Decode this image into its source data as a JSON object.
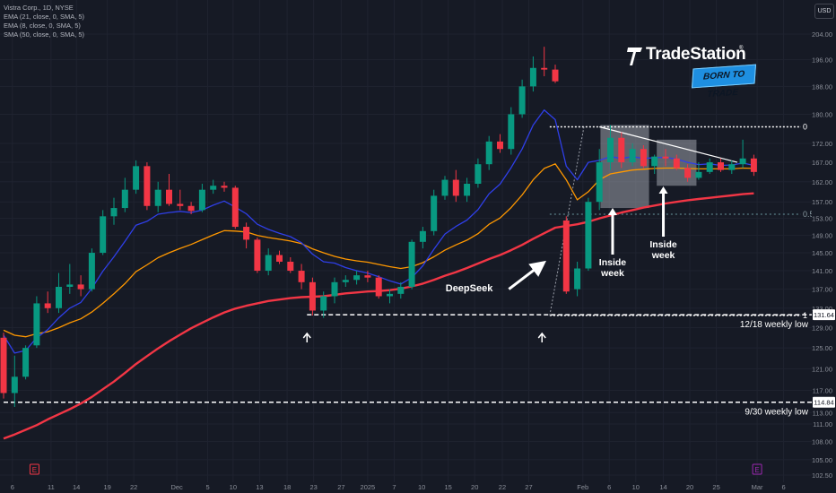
{
  "symbol_line": "Vistra Corp., 1D, NYSE",
  "indicators": [
    {
      "label": "EMA (21, close, 0, SMA, 5)",
      "color": "#ff9800"
    },
    {
      "label": "EMA (8, close, 0, SMA, 5)",
      "color": "#2f3fe8"
    },
    {
      "label": "SMA (50, close, 0, SMA, 5)",
      "color": "#f23645"
    }
  ],
  "currency_button": "USD",
  "brand": {
    "name": "TradeStation",
    "reg": "®",
    "tagline": "BORN TO TRADE",
    "accent": "#1e8fe1"
  },
  "chart_data": {
    "type": "candlestick",
    "colors": {
      "up": "#089981",
      "down": "#f23645",
      "ema21": "#ff9800",
      "ema8": "#2f3fe8",
      "sma50": "#f23645",
      "background": "#161a25"
    },
    "y_ticks": [
      204.0,
      196.0,
      188.0,
      180.0,
      172.0,
      167.0,
      162.0,
      157.0,
      153.0,
      149.0,
      145.0,
      141.0,
      137.0,
      133.0,
      129.0,
      125.0,
      121.0,
      117.0,
      113.0,
      111.0,
      108.0,
      105.0,
      102.5
    ],
    "x_ticks": [
      {
        "label": "6",
        "xi": 0.8
      },
      {
        "label": "11",
        "xi": 4.3
      },
      {
        "label": "14",
        "xi": 6.6
      },
      {
        "label": "19",
        "xi": 9.4
      },
      {
        "label": "22",
        "xi": 11.8
      },
      {
        "label": "Dec",
        "xi": 15.7
      },
      {
        "label": "5",
        "xi": 18.5
      },
      {
        "label": "10",
        "xi": 20.8
      },
      {
        "label": "13",
        "xi": 23.2
      },
      {
        "label": "18",
        "xi": 25.7
      },
      {
        "label": "23",
        "xi": 28.1
      },
      {
        "label": "27",
        "xi": 30.6
      },
      {
        "label": "2025",
        "xi": 33.0
      },
      {
        "label": "7",
        "xi": 35.4
      },
      {
        "label": "10",
        "xi": 37.9
      },
      {
        "label": "15",
        "xi": 40.3
      },
      {
        "label": "20",
        "xi": 42.7
      },
      {
        "label": "22",
        "xi": 45.2
      },
      {
        "label": "27",
        "xi": 47.6
      },
      {
        "label": "Feb",
        "xi": 52.5
      },
      {
        "label": "6",
        "xi": 54.9
      },
      {
        "label": "10",
        "xi": 57.3
      },
      {
        "label": "14",
        "xi": 59.8
      },
      {
        "label": "20",
        "xi": 62.2
      },
      {
        "label": "25",
        "xi": 64.6
      },
      {
        "label": "Mar",
        "xi": 68.3
      },
      {
        "label": "6",
        "xi": 70.7
      }
    ],
    "candles": [
      [
        127.0,
        128.0,
        115.5,
        116.5
      ],
      [
        116.5,
        123.5,
        114.0,
        119.5
      ],
      [
        119.5,
        125.5,
        119.0,
        125.0
      ],
      [
        125.5,
        135.5,
        125.0,
        134.0
      ],
      [
        134.0,
        136.5,
        132.0,
        133.0
      ],
      [
        133.0,
        140.5,
        132.0,
        137.5
      ],
      [
        137.5,
        142.5,
        136.0,
        138.0
      ],
      [
        138.0,
        140.0,
        135.5,
        137.0
      ],
      [
        137.0,
        146.0,
        136.5,
        145.0
      ],
      [
        145.0,
        155.0,
        144.5,
        153.5
      ],
      [
        153.5,
        158.0,
        151.5,
        155.5
      ],
      [
        155.5,
        163.0,
        154.5,
        160.0
      ],
      [
        160.0,
        167.5,
        159.0,
        166.0
      ],
      [
        166.0,
        167.0,
        155.0,
        156.0
      ],
      [
        156.0,
        162.0,
        154.5,
        160.0
      ],
      [
        160.0,
        164.0,
        156.0,
        156.5
      ],
      [
        156.5,
        160.0,
        155.0,
        156.0
      ],
      [
        156.0,
        157.0,
        154.0,
        154.8
      ],
      [
        155.0,
        161.5,
        154.5,
        160.0
      ],
      [
        160.0,
        162.5,
        159.0,
        161.0
      ],
      [
        161.0,
        162.0,
        159.5,
        160.5
      ],
      [
        160.5,
        161.0,
        150.5,
        151.0
      ],
      [
        151.0,
        152.0,
        146.0,
        148.0
      ],
      [
        148.0,
        148.5,
        140.5,
        141.0
      ],
      [
        141.0,
        146.0,
        140.0,
        144.5
      ],
      [
        144.5,
        145.5,
        142.5,
        143.0
      ],
      [
        143.0,
        144.0,
        140.5,
        141.0
      ],
      [
        141.0,
        142.5,
        137.0,
        138.5
      ],
      [
        138.5,
        139.5,
        131.5,
        132.5
      ],
      [
        132.5,
        136.5,
        131.0,
        135.5
      ],
      [
        135.5,
        139.5,
        134.0,
        138.5
      ],
      [
        138.5,
        140.0,
        137.5,
        139.0
      ],
      [
        139.0,
        141.0,
        138.0,
        140.0
      ],
      [
        140.0,
        141.0,
        138.5,
        139.5
      ],
      [
        139.5,
        140.0,
        135.0,
        135.5
      ],
      [
        135.5,
        137.0,
        134.0,
        136.0
      ],
      [
        136.0,
        138.5,
        135.0,
        137.5
      ],
      [
        137.5,
        148.0,
        137.0,
        147.5
      ],
      [
        147.5,
        151.0,
        146.0,
        150.0
      ],
      [
        150.0,
        160.0,
        149.0,
        158.5
      ],
      [
        158.5,
        163.5,
        157.5,
        162.5
      ],
      [
        162.5,
        165.0,
        157.0,
        158.5
      ],
      [
        158.5,
        163.0,
        157.0,
        161.5
      ],
      [
        161.5,
        168.0,
        160.5,
        166.5
      ],
      [
        166.5,
        174.0,
        165.0,
        172.5
      ],
      [
        172.5,
        174.5,
        169.5,
        170.5
      ],
      [
        170.5,
        182.0,
        169.0,
        180.0
      ],
      [
        180.0,
        190.0,
        179.0,
        188.0
      ],
      [
        188.0,
        197.0,
        186.5,
        193.5
      ],
      [
        193.5,
        200.0,
        191.0,
        193.0
      ],
      [
        193.0,
        194.5,
        189.0,
        189.5
      ],
      [
        152.5,
        153.5,
        136.0,
        136.5
      ],
      [
        137.0,
        143.0,
        135.5,
        141.5
      ],
      [
        141.5,
        158.0,
        141.0,
        157.0
      ],
      [
        157.0,
        170.5,
        155.0,
        167.0
      ],
      [
        167.0,
        177.0,
        165.0,
        173.5
      ],
      [
        173.5,
        175.0,
        165.5,
        167.0
      ],
      [
        167.0,
        172.0,
        166.0,
        170.5
      ],
      [
        170.5,
        171.5,
        165.5,
        166.0
      ],
      [
        166.0,
        169.0,
        164.0,
        168.5
      ],
      [
        168.5,
        170.5,
        166.0,
        168.0
      ],
      [
        168.0,
        169.0,
        165.0,
        165.5
      ],
      [
        165.5,
        166.5,
        162.0,
        163.0
      ],
      [
        163.0,
        167.0,
        162.5,
        164.5
      ],
      [
        164.5,
        168.0,
        164.0,
        167.0
      ],
      [
        167.0,
        168.0,
        164.5,
        165.0
      ],
      [
        165.0,
        167.5,
        164.0,
        166.5
      ],
      [
        166.5,
        173.0,
        165.5,
        168.0
      ],
      [
        168.0,
        169.0,
        163.5,
        164.5
      ]
    ],
    "ema8": [
      127.5,
      124.0,
      124.5,
      127.0,
      128.6,
      131.0,
      133.0,
      134.2,
      137.2,
      140.9,
      144.1,
      147.6,
      151.4,
      152.3,
      154.0,
      154.4,
      154.7,
      154.4,
      155.0,
      156.2,
      157.2,
      155.7,
      154.1,
      151.6,
      150.4,
      149.5,
      148.7,
      147.3,
      144.7,
      143.0,
      142.7,
      141.7,
      141.0,
      140.5,
      139.7,
      138.8,
      138.1,
      139.5,
      142.1,
      145.8,
      149.3,
      151.1,
      152.6,
      155.1,
      159.0,
      161.4,
      165.6,
      170.5,
      177.0,
      181.2,
      178.5,
      166.0,
      162.5,
      167.0,
      167.5,
      168.5,
      168.0,
      168.5,
      168.0,
      168.2,
      168.3,
      167.8,
      167.0,
      166.4,
      166.6,
      166.2,
      166.3,
      166.8,
      166.2
    ],
    "ema21": [
      128.5,
      127.5,
      127.2,
      127.8,
      128.2,
      129.0,
      130.0,
      130.8,
      132.2,
      134.0,
      136.0,
      138.2,
      140.8,
      142.3,
      143.9,
      145.0,
      146.0,
      146.9,
      148.0,
      149.1,
      150.1,
      150.0,
      149.8,
      149.0,
      148.5,
      148.1,
      147.7,
      147.1,
      145.9,
      145.0,
      144.2,
      143.6,
      143.2,
      142.9,
      142.4,
      141.9,
      141.5,
      141.9,
      142.8,
      144.1,
      145.6,
      146.8,
      147.9,
      149.4,
      151.6,
      153.1,
      155.6,
      158.7,
      162.5,
      165.4,
      166.6,
      162.5,
      157.5,
      159.5,
      162.5,
      164.0,
      164.5,
      165.0,
      165.2,
      165.4,
      165.5,
      165.5,
      165.4,
      165.3,
      165.3,
      165.3,
      165.3,
      165.5,
      165.4
    ],
    "sma50": [
      108.5,
      109.2,
      110.0,
      110.8,
      111.8,
      112.7,
      113.6,
      114.6,
      115.8,
      117.2,
      118.6,
      120.2,
      121.9,
      123.4,
      124.9,
      126.3,
      127.6,
      128.9,
      130.0,
      131.1,
      132.1,
      132.9,
      133.5,
      134.0,
      134.5,
      134.8,
      135.1,
      135.3,
      135.4,
      135.5,
      135.8,
      136.1,
      136.3,
      136.5,
      136.6,
      136.8,
      137.1,
      137.6,
      138.2,
      139.0,
      139.9,
      140.7,
      141.6,
      142.6,
      143.6,
      144.5,
      145.6,
      146.8,
      148.2,
      149.5,
      150.8,
      151.2,
      151.6,
      152.2,
      153.0,
      153.7,
      154.4,
      155.0,
      155.6,
      156.1,
      156.6,
      157.0,
      157.4,
      157.7,
      158.0,
      158.3,
      158.6,
      158.9,
      159.1
    ],
    "fib_levels": [
      {
        "label": "0",
        "price": 176.5
      },
      {
        "label": "0.5",
        "price": 154.0
      },
      {
        "label": "1",
        "price": 131.5
      }
    ],
    "price_tags": [
      {
        "label": "131.64",
        "price": 131.64
      },
      {
        "label": "114.84",
        "price": 114.84
      }
    ],
    "horizontal_levels": [
      {
        "label": "12/18 weekly low",
        "price": 131.64
      },
      {
        "label": "9/30 weekly low",
        "price": 114.84
      }
    ],
    "annotations": [
      "DeepSeek",
      "Inside week",
      "Inside week"
    ],
    "event_markers": [
      "E",
      "E"
    ]
  }
}
